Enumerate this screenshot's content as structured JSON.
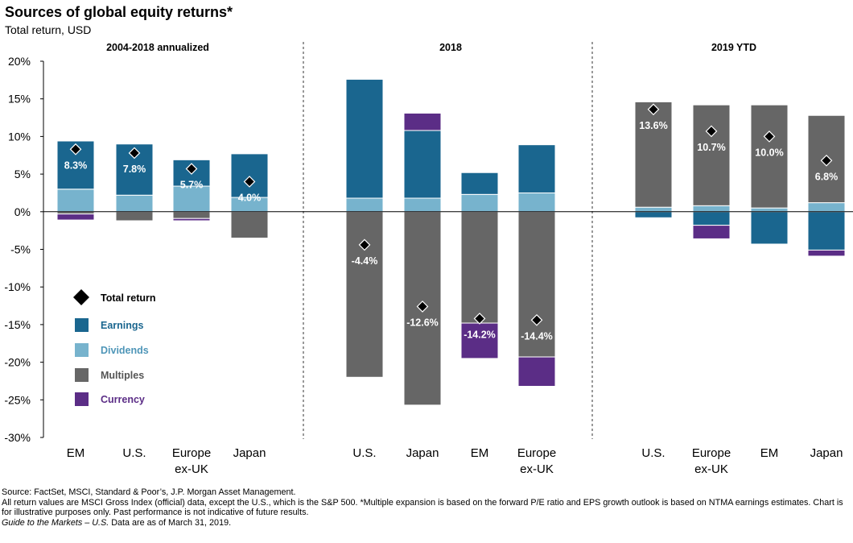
{
  "title": "Sources of global equity returns*",
  "subtitle": "Total return, USD",
  "colors": {
    "earnings": "#1a668f",
    "dividends": "#77b3cd",
    "multiples": "#666666",
    "currency": "#5b2d86",
    "total_return": "#000000"
  },
  "legend": [
    {
      "key": "total_return",
      "label": "Total return",
      "marker": "diamond-icon"
    },
    {
      "key": "earnings",
      "label": "Earnings",
      "marker": "square-icon"
    },
    {
      "key": "dividends",
      "label": "Dividends",
      "marker": "square-icon"
    },
    {
      "key": "multiples",
      "label": "Multiples",
      "marker": "square-icon"
    },
    {
      "key": "currency",
      "label": "Currency",
      "marker": "square-icon"
    }
  ],
  "chart_data": {
    "type": "bar",
    "stacked": true,
    "yunit": "%",
    "ylim": [
      -30,
      20
    ],
    "yticks": [
      20,
      15,
      10,
      5,
      0,
      -5,
      -10,
      -15,
      -20,
      -25,
      -30
    ],
    "ytick_labels": [
      "20%",
      "15%",
      "10%",
      "5%",
      "0%",
      "-5%",
      "-10%",
      "-15%",
      "-20%",
      "-25%",
      "-30%"
    ],
    "legend_position": "left",
    "groups": [
      {
        "name": "2004-2018 annualized",
        "bars": [
          {
            "category": [
              "EM"
            ],
            "segments": {
              "dividends": 3.0,
              "earnings": 6.4,
              "multiples": -0.3,
              "currency": -0.8
            },
            "total_return": 8.3,
            "total_label": "8.3%"
          },
          {
            "category": [
              "U.S."
            ],
            "segments": {
              "dividends": 2.2,
              "earnings": 6.8,
              "multiples": -1.2,
              "currency": 0
            },
            "total_return": 7.8,
            "total_label": "7.8%"
          },
          {
            "category": [
              "Europe",
              "ex-UK"
            ],
            "segments": {
              "dividends": 3.4,
              "earnings": 3.5,
              "multiples": -0.9,
              "currency": -0.3
            },
            "total_return": 5.7,
            "total_label": "5.7%"
          },
          {
            "category": [
              "Japan"
            ],
            "segments": {
              "dividends": 1.9,
              "earnings": 5.8,
              "multiples": -3.5,
              "currency": 0
            },
            "total_return": 4.0,
            "total_label": "4.0%"
          }
        ]
      },
      {
        "name": "2018",
        "bars": [
          {
            "category": [
              "U.S."
            ],
            "segments": {
              "dividends": 1.8,
              "earnings": 15.8,
              "multiples": -22.0,
              "currency": 0
            },
            "total_return": -4.4,
            "total_label": "-4.4%"
          },
          {
            "category": [
              "Japan"
            ],
            "segments": {
              "dividends": 1.8,
              "earnings": 9.0,
              "currency": 2.3,
              "multiples": -25.7
            },
            "total_return": -12.6,
            "total_label": "-12.6%"
          },
          {
            "category": [
              "EM"
            ],
            "segments": {
              "dividends": 2.3,
              "earnings": 2.9,
              "multiples": -14.8,
              "currency": -4.7
            },
            "total_return": -14.2,
            "total_label": "-14.2%"
          },
          {
            "category": [
              "Europe",
              "ex-UK"
            ],
            "segments": {
              "dividends": 2.5,
              "earnings": 6.4,
              "multiples": -19.3,
              "currency": -3.9
            },
            "total_return": -14.4,
            "total_label": "-14.4%"
          }
        ]
      },
      {
        "name": "2019 YTD",
        "bars": [
          {
            "category": [
              "U.S."
            ],
            "segments": {
              "dividends": 0.6,
              "multiples": 14.0,
              "earnings": -0.8,
              "currency": 0
            },
            "total_return": 13.6,
            "total_label": "13.6%"
          },
          {
            "category": [
              "Europe",
              "ex-UK"
            ],
            "segments": {
              "dividends": 0.8,
              "multiples": 13.4,
              "earnings": -1.8,
              "currency": -1.8
            },
            "total_return": 10.7,
            "total_label": "10.7%"
          },
          {
            "category": [
              "EM"
            ],
            "segments": {
              "dividends": 0.5,
              "multiples": 13.7,
              "earnings": -4.3,
              "currency": 0
            },
            "total_return": 10.0,
            "total_label": "10.0%"
          },
          {
            "category": [
              "Japan"
            ],
            "segments": {
              "dividends": 1.2,
              "multiples": 11.6,
              "earnings": -5.1,
              "currency": -0.8
            },
            "total_return": 6.8,
            "total_label": "6.8%"
          }
        ]
      }
    ]
  },
  "footer": {
    "source": "Source: FactSet, MSCI, Standard & Poor’s, J.P. Morgan Asset Management.",
    "note": "All return values are MSCI Gross Index (official) data, except the U.S., which is the S&P 500. *Multiple expansion is based on the forward P/E ratio and EPS growth outlook is based on NTMA earnings estimates. Chart is for illustrative purposes only. Past performance is not indicative of future results.",
    "guide_title": "Guide to the Markets – U.S.",
    "data_date": " Data are as of March 31, 2019."
  }
}
